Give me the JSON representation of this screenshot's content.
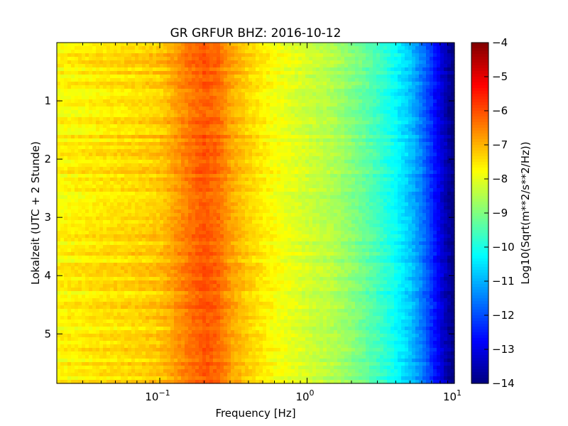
{
  "chart_data": {
    "type": "heatmap",
    "title": "GR GRFUR BHZ: 2016-10-12",
    "xlabel": "Frequency [Hz]",
    "ylabel": "Lokalzeit (UTC + 2 Stunde)",
    "x_scale": "log",
    "xlim": [
      0.02,
      10
    ],
    "ylim": [
      5.85,
      0
    ],
    "x_ticks": [
      {
        "value": 0.1,
        "base": "10",
        "exp": "−1"
      },
      {
        "value": 1,
        "base": "10",
        "exp": "0"
      },
      {
        "value": 10,
        "base": "10",
        "exp": "1"
      }
    ],
    "y_ticks": [
      {
        "value": 1,
        "label": "1"
      },
      {
        "value": 2,
        "label": "2"
      },
      {
        "value": 3,
        "label": "3"
      },
      {
        "value": 4,
        "label": "4"
      },
      {
        "value": 5,
        "label": "5"
      }
    ],
    "colorbar": {
      "label": "Log10(Sqrt(m**2/s**2/Hz))",
      "colormap": "jet",
      "vmin": -14,
      "vmax": -4,
      "ticks": [
        {
          "value": -4,
          "label": "−4"
        },
        {
          "value": -5,
          "label": "−5"
        },
        {
          "value": -6,
          "label": "−6"
        },
        {
          "value": -7,
          "label": "−7"
        },
        {
          "value": -8,
          "label": "−8"
        },
        {
          "value": -9,
          "label": "−9"
        },
        {
          "value": -10,
          "label": "−10"
        },
        {
          "value": -11,
          "label": "−11"
        },
        {
          "value": -12,
          "label": "−12"
        },
        {
          "value": -13,
          "label": "−13"
        },
        {
          "value": -14,
          "label": "−14"
        }
      ]
    },
    "frequency_profile": [
      {
        "f": 0.02,
        "v": -7.7
      },
      {
        "f": 0.04,
        "v": -7.5
      },
      {
        "f": 0.06,
        "v": -7.4
      },
      {
        "f": 0.08,
        "v": -7.3
      },
      {
        "f": 0.1,
        "v": -7.2
      },
      {
        "f": 0.12,
        "v": -6.9
      },
      {
        "f": 0.14,
        "v": -6.6
      },
      {
        "f": 0.17,
        "v": -6.3
      },
      {
        "f": 0.2,
        "v": -6.1
      },
      {
        "f": 0.25,
        "v": -6.3
      },
      {
        "f": 0.3,
        "v": -6.8
      },
      {
        "f": 0.4,
        "v": -7.3
      },
      {
        "f": 0.6,
        "v": -7.8
      },
      {
        "f": 1.0,
        "v": -8.2
      },
      {
        "f": 1.5,
        "v": -8.5
      },
      {
        "f": 2.0,
        "v": -8.9
      },
      {
        "f": 3.0,
        "v": -9.6
      },
      {
        "f": 4.0,
        "v": -10.2
      },
      {
        "f": 5.0,
        "v": -10.8
      },
      {
        "f": 6.0,
        "v": -11.5
      },
      {
        "f": 7.0,
        "v": -12.3
      },
      {
        "f": 8.0,
        "v": -13.0
      },
      {
        "f": 9.0,
        "v": -13.6
      },
      {
        "f": 10.0,
        "v": -14.0
      }
    ]
  }
}
